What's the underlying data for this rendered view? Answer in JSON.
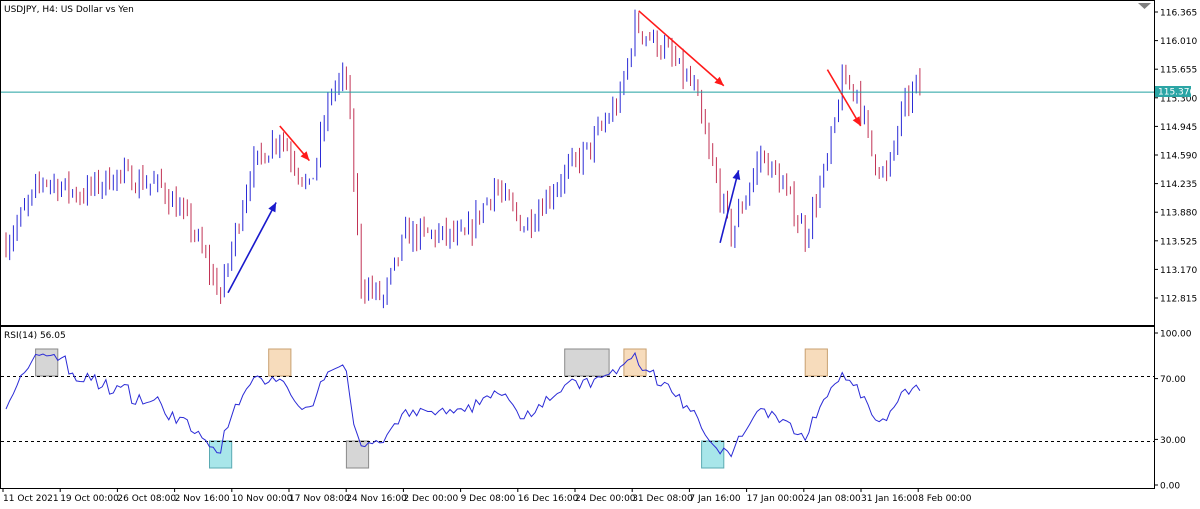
{
  "chart_data": [
    {
      "type": "candlestick",
      "title": "USDJPY, H4:  US Dollar vs Yen",
      "symbol": "USDJPY",
      "timeframe": "H4",
      "description": "US Dollar vs Yen",
      "ylim": [
        112.52,
        116.5
      ],
      "y_ticks": [
        "116.365",
        "116.010",
        "115.655",
        "115.300",
        "114.945",
        "114.590",
        "114.235",
        "113.880",
        "113.525",
        "113.170",
        "112.815"
      ],
      "x_ticks": [
        "11 Oct 2021",
        "19 Oct 00:00",
        "26 Oct 08:00",
        "2 Nov 16:00",
        "10 Nov 00:00",
        "17 Nov 08:00",
        "24 Nov 16:00",
        "2 Dec 00:00",
        "9 Dec 08:00",
        "16 Dec 16:00",
        "24 Dec 00:00",
        "31 Dec 08:00",
        "7 Jan 16:00",
        "17 Jan 00:00",
        "24 Jan 08:00",
        "31 Jan 16:00",
        "8 Feb 00:00"
      ],
      "current_price": "115.376",
      "current_price_value": 115.376,
      "colors": {
        "bull": "#2b2bd6",
        "bear": "#c23355",
        "price_line": "#20a0a0",
        "price_label_bg": "#2ba5a5",
        "up_arrow": "#1a1acc",
        "down_arrow": "#ff1a1a"
      },
      "trend_anchors": [
        {
          "i": 0,
          "p": 113.5
        },
        {
          "i": 10,
          "p": 114.3
        },
        {
          "i": 20,
          "p": 114.1
        },
        {
          "i": 30,
          "p": 114.35
        },
        {
          "i": 42,
          "p": 114.2
        },
        {
          "i": 50,
          "p": 113.7
        },
        {
          "i": 58,
          "p": 112.85
        },
        {
          "i": 66,
          "p": 114.4
        },
        {
          "i": 74,
          "p": 114.85
        },
        {
          "i": 82,
          "p": 114.15
        },
        {
          "i": 88,
          "p": 115.4
        },
        {
          "i": 92,
          "p": 115.55
        },
        {
          "i": 96,
          "p": 113.0
        },
        {
          "i": 102,
          "p": 112.8
        },
        {
          "i": 108,
          "p": 113.6
        },
        {
          "i": 116,
          "p": 113.6
        },
        {
          "i": 124,
          "p": 113.55
        },
        {
          "i": 132,
          "p": 114.2
        },
        {
          "i": 140,
          "p": 113.7
        },
        {
          "i": 150,
          "p": 114.3
        },
        {
          "i": 158,
          "p": 114.7
        },
        {
          "i": 166,
          "p": 115.3
        },
        {
          "i": 170,
          "p": 116.2
        },
        {
          "i": 178,
          "p": 115.9
        },
        {
          "i": 186,
          "p": 115.4
        },
        {
          "i": 190,
          "p": 114.6
        },
        {
          "i": 196,
          "p": 113.6
        },
        {
          "i": 204,
          "p": 114.6
        },
        {
          "i": 210,
          "p": 114.2
        },
        {
          "i": 216,
          "p": 113.6
        },
        {
          "i": 222,
          "p": 114.5
        },
        {
          "i": 226,
          "p": 115.5
        },
        {
          "i": 230,
          "p": 115.4
        },
        {
          "i": 234,
          "p": 114.6
        },
        {
          "i": 238,
          "p": 114.3
        },
        {
          "i": 242,
          "p": 115.1
        },
        {
          "i": 246,
          "p": 115.45
        }
      ],
      "trend_arrows": [
        {
          "direction": "up",
          "from": {
            "i": 60,
            "p": 112.88
          },
          "to": {
            "i": 73,
            "p": 114.0
          }
        },
        {
          "direction": "down",
          "from": {
            "i": 74,
            "p": 114.95
          },
          "to": {
            "i": 82,
            "p": 114.52
          }
        },
        {
          "direction": "down",
          "from": {
            "i": 171,
            "p": 116.38
          },
          "to": {
            "i": 194,
            "p": 115.45
          }
        },
        {
          "direction": "up",
          "from": {
            "i": 193,
            "p": 113.5
          },
          "to": {
            "i": 198,
            "p": 114.4
          }
        },
        {
          "direction": "down",
          "from": {
            "i": 222,
            "p": 115.65
          },
          "to": {
            "i": 231,
            "p": 114.95
          }
        }
      ]
    },
    {
      "type": "line",
      "title": "RSI(14) 56.05",
      "ylim": [
        0,
        100
      ],
      "y_ticks": [
        "100.00",
        "70.00",
        "30.00",
        "0.00"
      ],
      "levels": [
        70,
        30
      ],
      "line_color": "#2b2bd6",
      "series": [
        {
          "name": "RSI(14)",
          "last_value": 56.05
        }
      ],
      "highlight_boxes": [
        {
          "color": "gray",
          "i0": 8,
          "i1": 14,
          "v0": 75,
          "v1": 100
        },
        {
          "color": "cyan",
          "i0": 55,
          "i1": 61,
          "v0": 0,
          "v1": 30
        },
        {
          "color": "orange",
          "i0": 71,
          "i1": 77,
          "v0": 75,
          "v1": 100
        },
        {
          "color": "gray",
          "i0": 92,
          "i1": 98,
          "v0": 0,
          "v1": 30
        },
        {
          "color": "gray",
          "i0": 151,
          "i1": 163,
          "v0": 75,
          "v1": 100
        },
        {
          "color": "orange",
          "i0": 167,
          "i1": 173,
          "v0": 75,
          "v1": 100
        },
        {
          "color": "cyan",
          "i0": 188,
          "i1": 194,
          "v0": 0,
          "v1": 30
        },
        {
          "color": "orange",
          "i0": 216,
          "i1": 222,
          "v0": 75,
          "v1": 100
        }
      ]
    }
  ]
}
